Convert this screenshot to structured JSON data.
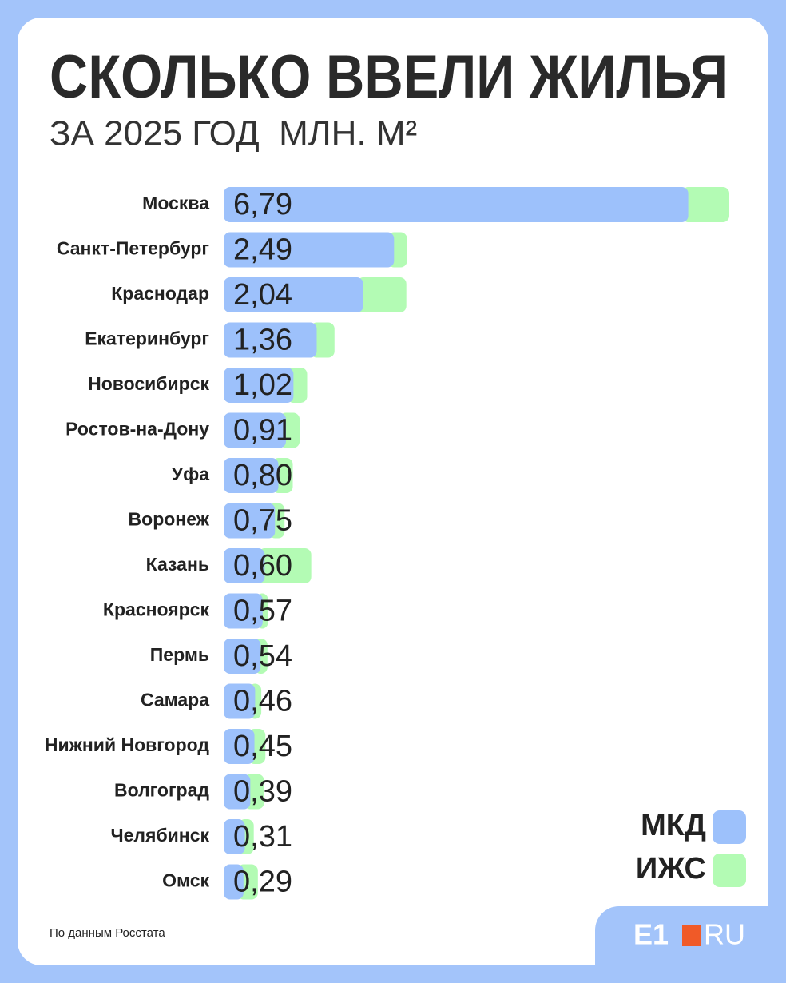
{
  "chart_data": {
    "type": "stacked-bar",
    "title": "СКОЛЬКО ВВЕЛИ ЖИЛЬЯ",
    "subtitle": "ЗА 2025 ГОД  МЛН. М²",
    "source": "По данным Росстата",
    "logo": {
      "left": "E1",
      "right": "RU"
    },
    "categories": [
      "Москва",
      "Санкт-Петербург",
      "Краснодар",
      "Екатеринбург",
      "Новосибирск",
      "Ростов-на-Дону",
      "Уфа",
      "Воронеж",
      "Казань",
      "Красноярск",
      "Пермь",
      "Самара",
      "Нижний Новгород",
      "Волгоград",
      "Челябинск",
      "Омск"
    ],
    "series": [
      {
        "name": "МКД",
        "color": "#9dc1fb",
        "values": [
          6.79,
          2.49,
          2.04,
          1.36,
          1.02,
          0.91,
          0.8,
          0.75,
          0.6,
          0.57,
          0.54,
          0.46,
          0.45,
          0.39,
          0.31,
          0.29
        ],
        "value_labels": [
          "6,79",
          "2,49",
          "2,04",
          "1,36",
          "1,02",
          "0,91",
          "0,80",
          "0,75",
          "0,60",
          "0,57",
          "0,54",
          "0,46",
          "0,45",
          "0,39",
          "0,31",
          "0,29"
        ]
      },
      {
        "name": "ИЖС",
        "color": "#b3fbb4",
        "values": [
          0.6,
          0.19,
          0.63,
          0.26,
          0.2,
          0.2,
          0.21,
          0.14,
          0.68,
          0.08,
          0.1,
          0.09,
          0.16,
          0.2,
          0.13,
          0.21
        ]
      }
    ]
  }
}
